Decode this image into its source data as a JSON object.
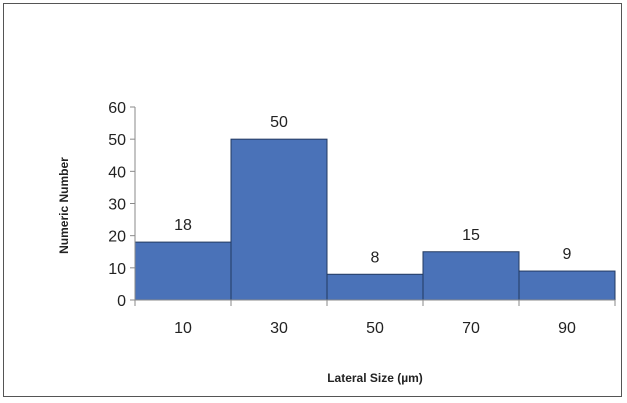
{
  "chart_data": {
    "type": "bar",
    "categories": [
      "10",
      "30",
      "50",
      "70",
      "90"
    ],
    "values": [
      18,
      50,
      8,
      15,
      9
    ],
    "data_labels": [
      "18",
      "50",
      "8",
      "15",
      "9"
    ],
    "title": "",
    "xlabel": "Lateral Size (µm)",
    "ylabel": "Numeric Number",
    "ylim": [
      0,
      60
    ],
    "yticks": [
      "0",
      "10",
      "20",
      "30",
      "40",
      "50",
      "60"
    ],
    "bar_color": "#4a72b8",
    "bar_edge_color": "#233a60",
    "grid": false,
    "legend": "none"
  }
}
